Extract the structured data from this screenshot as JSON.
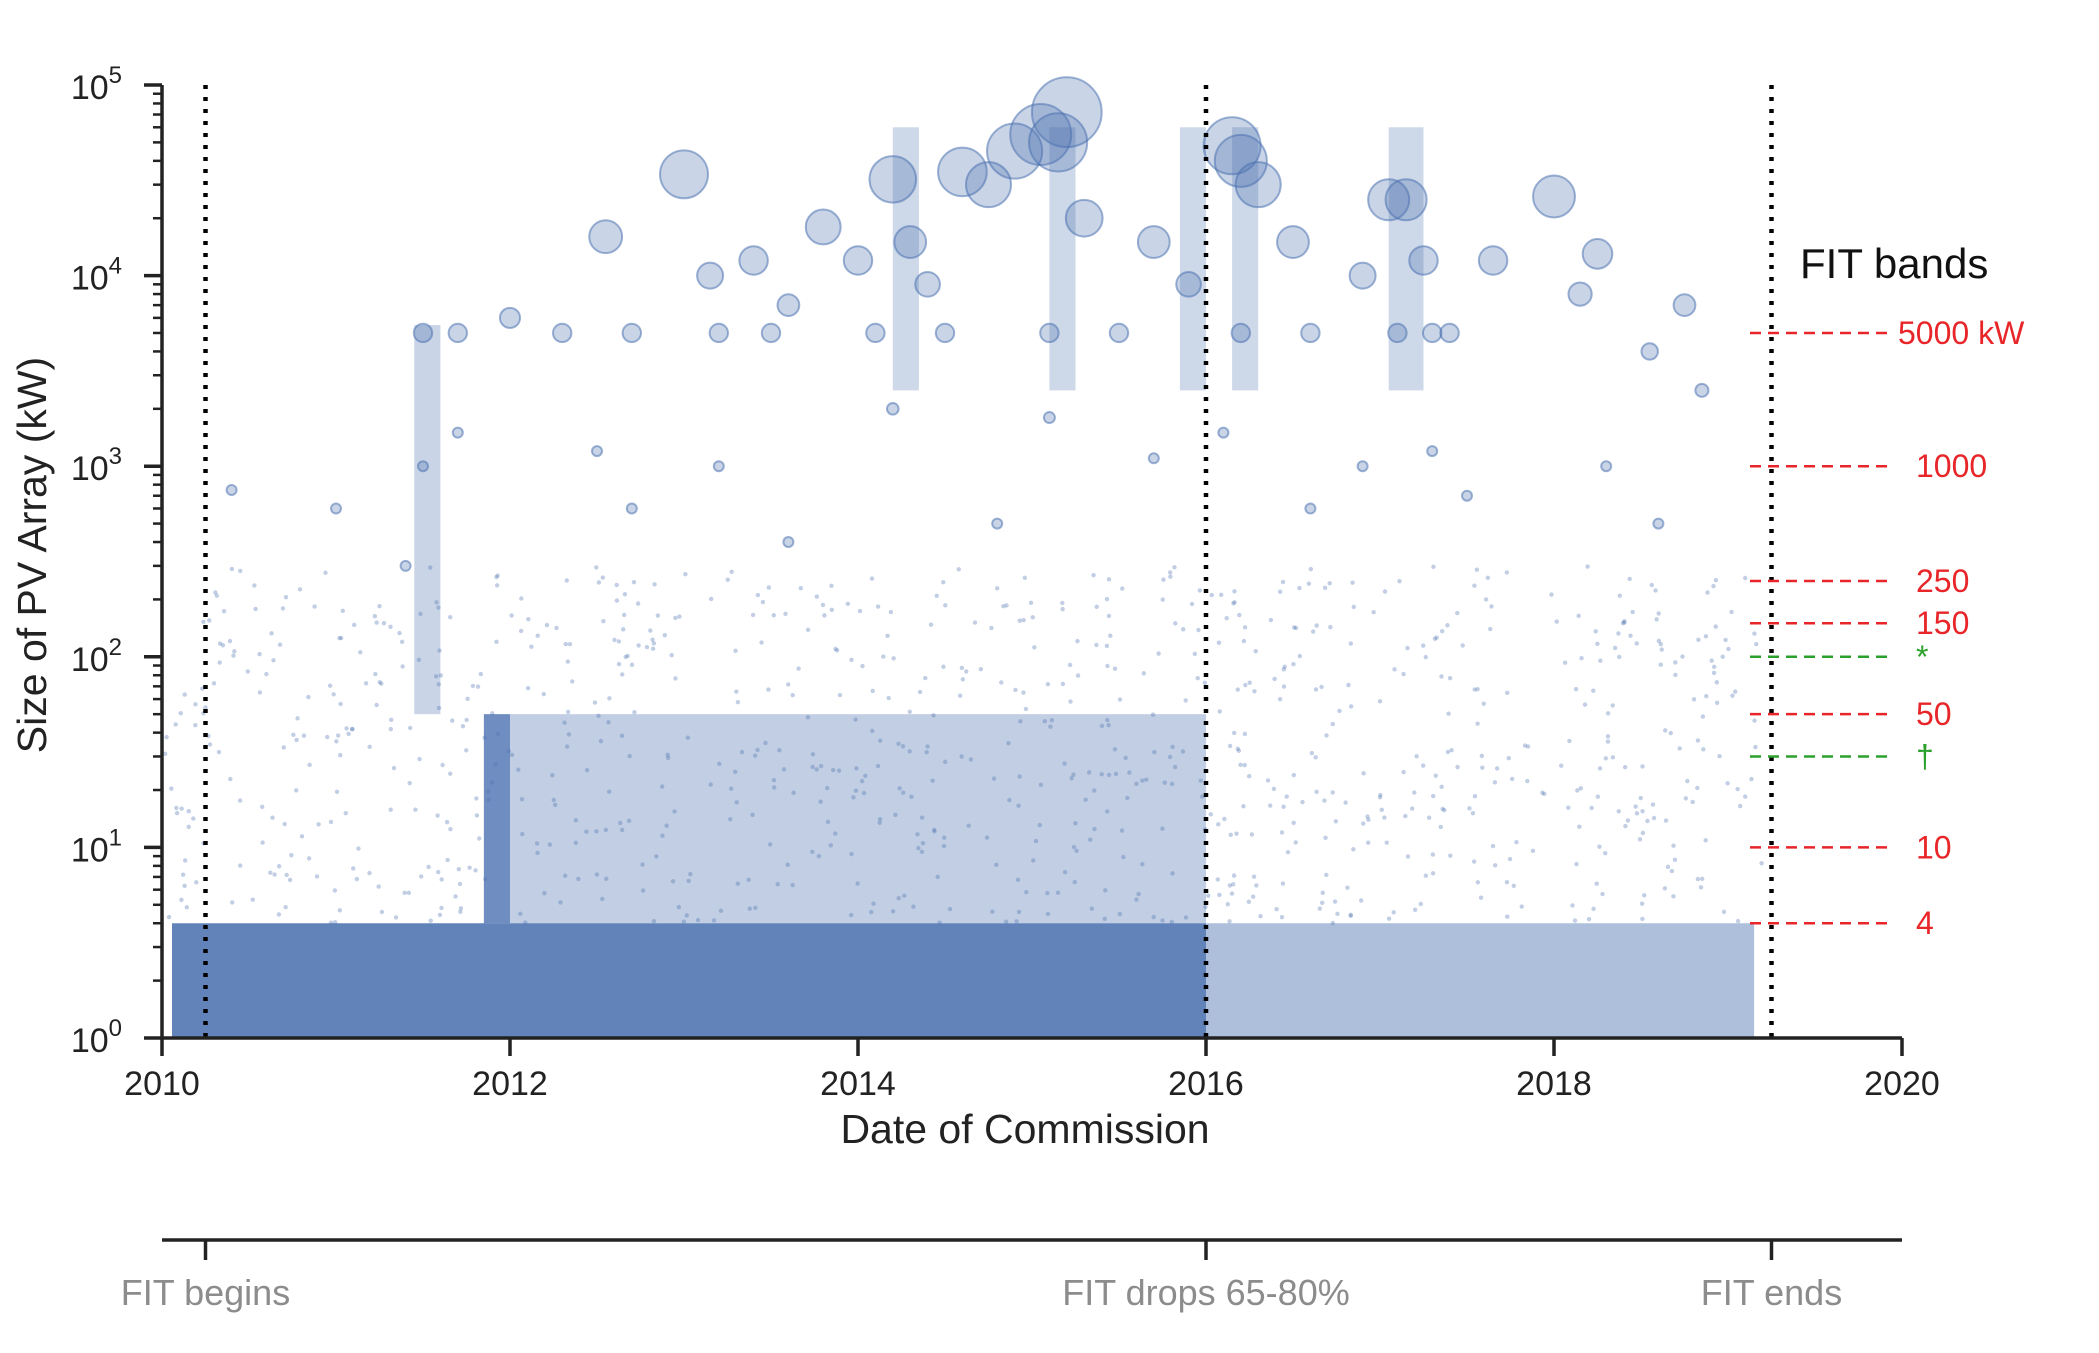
{
  "chart_data": {
    "type": "scatter",
    "xlabel": "Date of Commission",
    "ylabel": "Size of PV Array (kW)",
    "xlim": [
      2010,
      2020
    ],
    "ylim": [
      1,
      100000
    ],
    "y_scale": "log",
    "x_ticks": [
      "2010",
      "2012",
      "2014",
      "2016",
      "2018",
      "2020"
    ],
    "y_ticks": [
      {
        "base": "10",
        "exp": "0"
      },
      {
        "base": "10",
        "exp": "1"
      },
      {
        "base": "10",
        "exp": "2"
      },
      {
        "base": "10",
        "exp": "3"
      },
      {
        "base": "10",
        "exp": "4"
      },
      {
        "base": "10",
        "exp": "5"
      }
    ],
    "marker_color": "#4c72b0",
    "marker_size_scales_with_value": true,
    "grid": false,
    "events": [
      {
        "x": 2010.25,
        "label": "FIT begins"
      },
      {
        "x": 2016.0,
        "label": "FIT drops 65-80%"
      },
      {
        "x": 2019.25,
        "label": "FIT ends"
      }
    ],
    "fit_bands_title": "FIT bands",
    "fit_bands": [
      {
        "y": 5000,
        "label": "5000 kW",
        "color": "#e8262a"
      },
      {
        "y": 1000,
        "label": "1000",
        "color": "#e8262a"
      },
      {
        "y": 250,
        "label": "250",
        "color": "#e8262a"
      },
      {
        "y": 150,
        "label": "150",
        "color": "#e8262a"
      },
      {
        "y": 100,
        "label": "*",
        "color": "#2ca02c"
      },
      {
        "y": 50,
        "label": "50",
        "color": "#e8262a"
      },
      {
        "y": 30,
        "label": "†",
        "color": "#2ca02c"
      },
      {
        "y": 10,
        "label": "10",
        "color": "#e8262a"
      },
      {
        "y": 4,
        "label": "4",
        "color": "#e8262a"
      }
    ],
    "series": [
      {
        "points": [
          [
            2011.5,
            5000
          ],
          [
            2011.7,
            5000
          ],
          [
            2012.3,
            5000
          ],
          [
            2012.7,
            5000
          ],
          [
            2013.2,
            5000
          ],
          [
            2013.5,
            5000
          ],
          [
            2014.1,
            5000
          ],
          [
            2014.5,
            5000
          ],
          [
            2015.1,
            5000
          ],
          [
            2015.5,
            5000
          ],
          [
            2016.2,
            5000
          ],
          [
            2016.6,
            5000
          ],
          [
            2017.1,
            5000
          ],
          [
            2017.3,
            5000
          ],
          [
            2013.0,
            34000
          ],
          [
            2013.15,
            10000
          ],
          [
            2013.4,
            12000
          ],
          [
            2013.6,
            7000
          ],
          [
            2013.8,
            18000
          ],
          [
            2014.0,
            12000
          ],
          [
            2014.2,
            32000
          ],
          [
            2014.3,
            15000
          ],
          [
            2014.4,
            9000
          ],
          [
            2014.6,
            35000
          ],
          [
            2014.75,
            30000
          ],
          [
            2014.9,
            45000
          ],
          [
            2015.05,
            55000
          ],
          [
            2015.15,
            50000
          ],
          [
            2015.2,
            72000
          ],
          [
            2015.3,
            20000
          ],
          [
            2015.7,
            15000
          ],
          [
            2015.9,
            9000
          ],
          [
            2016.15,
            48000
          ],
          [
            2016.2,
            40000
          ],
          [
            2016.3,
            30000
          ],
          [
            2016.5,
            15000
          ],
          [
            2016.9,
            10000
          ],
          [
            2017.05,
            25000
          ],
          [
            2017.15,
            25000
          ],
          [
            2017.25,
            12000
          ],
          [
            2012.55,
            16000
          ],
          [
            2017.65,
            12000
          ],
          [
            2018.0,
            26000
          ],
          [
            2018.25,
            13000
          ],
          [
            2018.15,
            8000
          ],
          [
            2018.75,
            7000
          ],
          [
            2017.4,
            5000
          ],
          [
            2012.0,
            6000
          ],
          [
            2018.55,
            4000
          ],
          [
            2018.85,
            2500
          ],
          [
            2011.5,
            1000
          ],
          [
            2011.7,
            1500
          ],
          [
            2012.5,
            1200
          ],
          [
            2013.2,
            1000
          ],
          [
            2014.2,
            2000
          ],
          [
            2015.1,
            1800
          ],
          [
            2015.7,
            1100
          ],
          [
            2016.1,
            1500
          ],
          [
            2016.9,
            1000
          ],
          [
            2017.3,
            1200
          ],
          [
            2018.3,
            1000
          ],
          [
            2011.4,
            300
          ],
          [
            2012.7,
            600
          ],
          [
            2013.6,
            400
          ],
          [
            2014.8,
            500
          ],
          [
            2016.6,
            600
          ],
          [
            2017.5,
            700
          ],
          [
            2018.6,
            500
          ],
          [
            2010.4,
            750
          ],
          [
            2011.0,
            600
          ]
        ]
      }
    ]
  }
}
